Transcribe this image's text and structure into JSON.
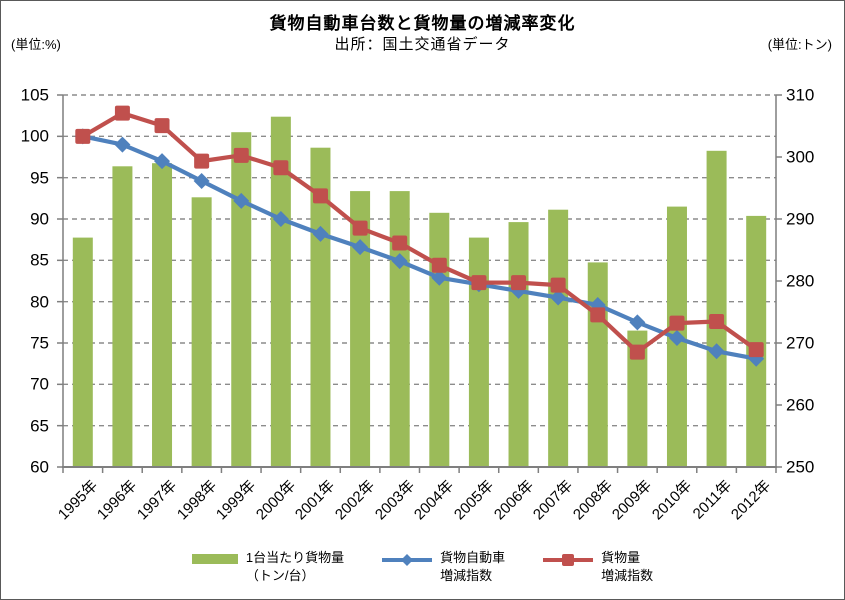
{
  "header": {
    "title": "貨物自動車台数と貨物量の増減率変化",
    "subtitle": "出所：国土交通省データ"
  },
  "chart_data": {
    "type": "bar+line combo",
    "title": "貨物自動車台数と貨物量の増減率変化",
    "subtitle": "出所：国土交通省データ",
    "categories": [
      "1995年",
      "1996年",
      "1997年",
      "1998年",
      "1999年",
      "2000年",
      "2001年",
      "2002年",
      "2003年",
      "2004年",
      "2005年",
      "2006年",
      "2007年",
      "2008年",
      "2009年",
      "2010年",
      "2011年",
      "2012年"
    ],
    "bar_series": {
      "name": "1台当たり貨物量（トン/台）",
      "axis": "right",
      "unit": "トン",
      "color": "#9BBB59",
      "values": [
        287,
        298.5,
        299,
        293.5,
        304,
        306.5,
        301.5,
        294.5,
        294.5,
        291,
        287,
        289.5,
        291.5,
        283,
        272,
        292,
        301,
        290.5
      ]
    },
    "line_series": [
      {
        "name": "貨物自動車増減指数",
        "axis": "left",
        "unit": "%",
        "marker": "diamond",
        "color": "#4F81BD",
        "values": [
          100,
          99,
          97,
          94.6,
          92.2,
          90,
          88.2,
          86.6,
          84.9,
          82.9,
          82.1,
          81.3,
          80.5,
          79.6,
          77.5,
          75.6,
          74,
          73.1
        ]
      },
      {
        "name": "貨物量増減指数",
        "axis": "left",
        "unit": "%",
        "marker": "square",
        "color": "#C0504D",
        "values": [
          100,
          102.8,
          101.3,
          97,
          97.7,
          96.2,
          92.8,
          88.9,
          87.1,
          84.4,
          82.3,
          82.3,
          82,
          78.4,
          73.9,
          77.4,
          77.6,
          74.2
        ]
      }
    ],
    "left_axis": {
      "unit": "(単位:%)",
      "min": 60,
      "max": 105,
      "step": 5,
      "ticks": [
        105,
        100,
        95,
        90,
        85,
        80,
        75,
        70,
        65,
        60
      ]
    },
    "right_axis": {
      "unit": "(単位:トン)",
      "min": 250,
      "max": 310,
      "step": 10,
      "ticks": [
        310,
        300,
        290,
        280,
        270,
        260,
        250
      ]
    },
    "grid": "horizontal dashed gray",
    "legend_position": "bottom"
  },
  "legend": {
    "items": [
      {
        "label_line1": "1台当たり貨物量",
        "label_line2": "（トン/台）",
        "swatch": "bar",
        "color": "#9BBB59"
      },
      {
        "label_line1": "貨物自動車",
        "label_line2": "増減指数",
        "swatch": "line-diamond",
        "color": "#4F81BD"
      },
      {
        "label_line1": "貨物量",
        "label_line2": "増減指数",
        "swatch": "line-square",
        "color": "#C0504D"
      }
    ]
  }
}
